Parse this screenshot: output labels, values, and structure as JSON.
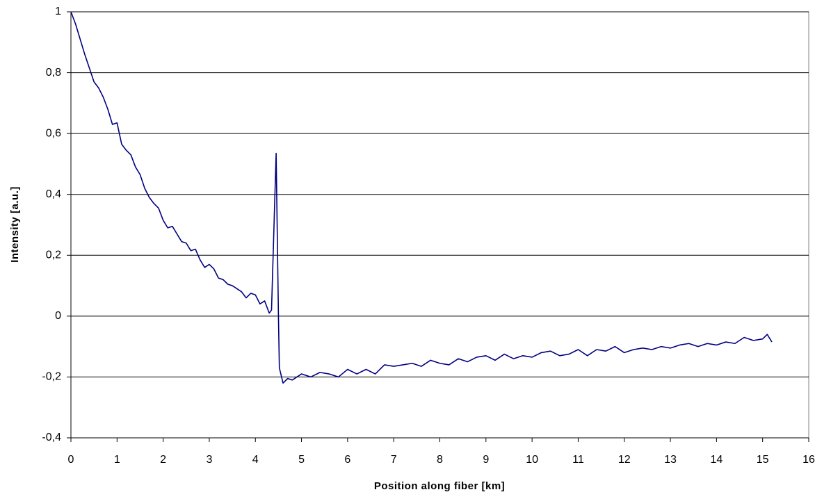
{
  "chart_data": {
    "type": "line",
    "x_label": "Position along fiber [km]",
    "y_label": "Intensity [a.u.]",
    "xlim": [
      0,
      16
    ],
    "ylim": [
      -0.4,
      1
    ],
    "xticks": [
      0,
      1,
      2,
      3,
      4,
      5,
      6,
      7,
      8,
      9,
      10,
      11,
      12,
      13,
      14,
      15,
      16
    ],
    "yticks": [
      {
        "value": -0.4,
        "label": "-0,4"
      },
      {
        "value": -0.2,
        "label": "-0,2"
      },
      0,
      {
        "value": 0.2,
        "label": "0,2"
      },
      {
        "value": 0.4,
        "label": "0,4"
      },
      {
        "value": 0.6,
        "label": "0,6"
      },
      {
        "value": 0.8,
        "label": "0,8"
      },
      1
    ],
    "grid": true,
    "series": [
      {
        "color": "#000080",
        "x": [
          0,
          0.1,
          0.2,
          0.3,
          0.4,
          0.5,
          0.6,
          0.7,
          0.8,
          0.9,
          1.0,
          1.1,
          1.2,
          1.3,
          1.4,
          1.5,
          1.6,
          1.7,
          1.8,
          1.9,
          2.0,
          2.1,
          2.2,
          2.3,
          2.4,
          2.5,
          2.6,
          2.7,
          2.8,
          2.9,
          3.0,
          3.1,
          3.2,
          3.3,
          3.4,
          3.5,
          3.6,
          3.7,
          3.8,
          3.9,
          4.0,
          4.1,
          4.2,
          4.3,
          4.35,
          4.45,
          4.5,
          4.52,
          4.6,
          4.7,
          4.8,
          5.0,
          5.2,
          5.4,
          5.6,
          5.8,
          6.0,
          6.2,
          6.4,
          6.6,
          6.8,
          7.0,
          7.2,
          7.4,
          7.6,
          7.8,
          8.0,
          8.2,
          8.4,
          8.6,
          8.8,
          9.0,
          9.2,
          9.4,
          9.6,
          9.8,
          10.0,
          10.2,
          10.4,
          10.6,
          10.8,
          11.0,
          11.2,
          11.4,
          11.6,
          11.8,
          12.0,
          12.2,
          12.4,
          12.6,
          12.8,
          13.0,
          13.2,
          13.4,
          13.6,
          13.8,
          14.0,
          14.2,
          14.4,
          14.6,
          14.8,
          15.0,
          15.1,
          15.2
        ],
        "values": [
          1.0,
          0.96,
          0.91,
          0.86,
          0.815,
          0.77,
          0.75,
          0.72,
          0.68,
          0.63,
          0.635,
          0.565,
          0.545,
          0.53,
          0.49,
          0.465,
          0.42,
          0.39,
          0.37,
          0.355,
          0.315,
          0.29,
          0.295,
          0.27,
          0.245,
          0.24,
          0.215,
          0.22,
          0.185,
          0.16,
          0.17,
          0.155,
          0.125,
          0.12,
          0.105,
          0.1,
          0.09,
          0.08,
          0.06,
          0.075,
          0.07,
          0.04,
          0.05,
          0.01,
          0.02,
          0.535,
          0.0,
          -0.17,
          -0.22,
          -0.205,
          -0.21,
          -0.19,
          -0.2,
          -0.185,
          -0.19,
          -0.2,
          -0.175,
          -0.19,
          -0.175,
          -0.19,
          -0.16,
          -0.165,
          -0.16,
          -0.155,
          -0.165,
          -0.145,
          -0.155,
          -0.16,
          -0.14,
          -0.15,
          -0.135,
          -0.13,
          -0.145,
          -0.125,
          -0.14,
          -0.13,
          -0.135,
          -0.12,
          -0.115,
          -0.13,
          -0.125,
          -0.11,
          -0.13,
          -0.11,
          -0.115,
          -0.1,
          -0.12,
          -0.11,
          -0.105,
          -0.11,
          -0.1,
          -0.105,
          -0.095,
          -0.09,
          -0.1,
          -0.09,
          -0.095,
          -0.085,
          -0.09,
          -0.07,
          -0.08,
          -0.075,
          -0.06,
          -0.085
        ]
      }
    ]
  }
}
